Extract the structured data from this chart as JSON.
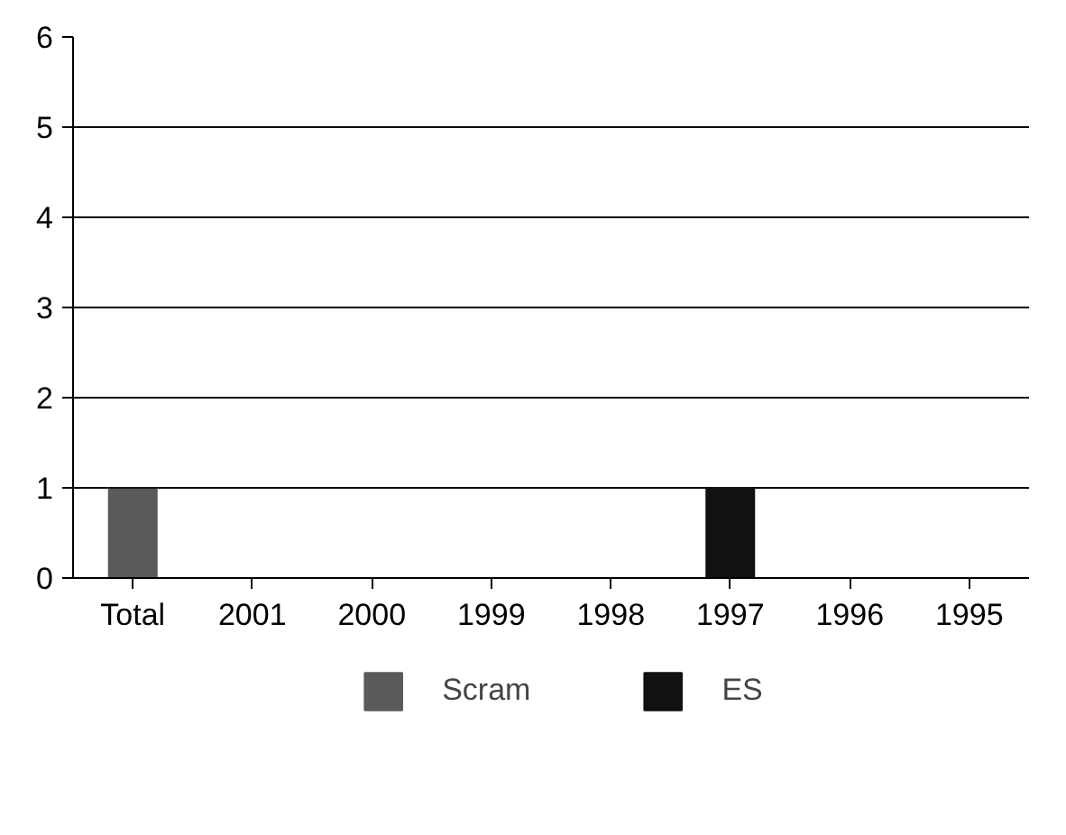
{
  "chart_data": {
    "type": "bar",
    "stacked": true,
    "categories": [
      "Total",
      "2001",
      "2000",
      "1999",
      "1998",
      "1997",
      "1996",
      "1995"
    ],
    "series": [
      {
        "name": "Scram",
        "color": "#5a5a5a",
        "values": [
          1,
          0,
          0,
          0,
          0,
          0,
          0,
          0
        ]
      },
      {
        "name": "ES",
        "color": "#111111",
        "values": [
          0,
          0,
          0,
          0,
          0,
          1,
          0,
          0
        ]
      }
    ],
    "ylim": [
      0,
      6
    ],
    "yticks": [
      0,
      1,
      2,
      3,
      4,
      5,
      6
    ],
    "grid": "y",
    "legend": "bottom"
  }
}
